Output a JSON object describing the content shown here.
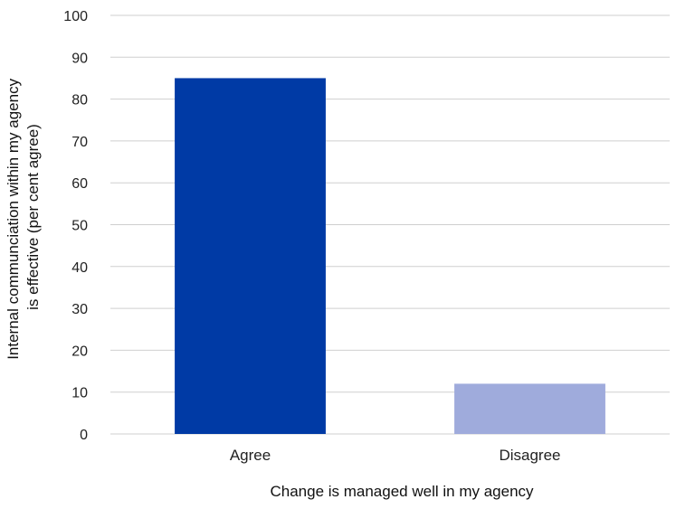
{
  "chart_data": {
    "type": "bar",
    "categories": [
      "Agree",
      "Disagree"
    ],
    "values": [
      85,
      12
    ],
    "colors": [
      "#003aa5",
      "#9fabdc"
    ],
    "xlabel": "Change is managed well in my agency",
    "ylabel": [
      "Internal communciation within my agency",
      "is effective (per cent agree)"
    ],
    "ylim": [
      0,
      100
    ],
    "yticks": [
      0,
      10,
      20,
      30,
      40,
      50,
      60,
      70,
      80,
      90,
      100
    ],
    "grid": true
  }
}
